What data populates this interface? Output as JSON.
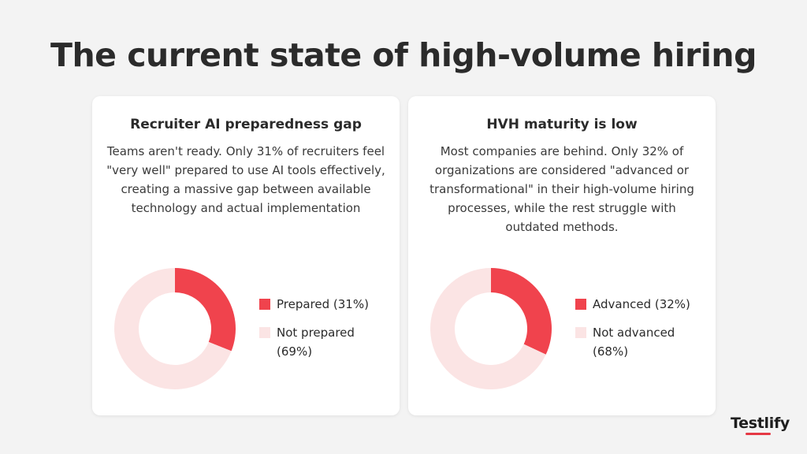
{
  "header": {
    "title": "The current state of high-volume hiring"
  },
  "colors": {
    "accent": "#f0434d",
    "accent_light": "#fbe4e4",
    "brand_red": "#e53945"
  },
  "cards": [
    {
      "title": "Recruiter AI preparedness gap",
      "description": "Teams aren't ready. Only 31% of recruiters feel \"very well\" prepared to use AI tools effectively, creating a massive gap between available technology and actual implementation",
      "legend": [
        {
          "label": "Prepared (31%)"
        },
        {
          "label": "Not prepared (69%)"
        }
      ]
    },
    {
      "title": "HVH maturity is low",
      "description": "Most companies are behind. Only 32% of organizations are considered \"advanced or transformational\" in their high-volume hiring processes, while the rest struggle with outdated methods.",
      "legend": [
        {
          "label": "Advanced (32%)"
        },
        {
          "label": "Not advanced (68%)"
        }
      ]
    }
  ],
  "chart_data": [
    {
      "type": "pie",
      "title": "Recruiter AI preparedness gap",
      "categories": [
        "Prepared",
        "Not prepared"
      ],
      "values": [
        31,
        69
      ],
      "colors": [
        "#f0434d",
        "#fbe4e4"
      ],
      "donut": true,
      "legend_position": "right"
    },
    {
      "type": "pie",
      "title": "HVH maturity is low",
      "categories": [
        "Advanced",
        "Not advanced"
      ],
      "values": [
        32,
        68
      ],
      "colors": [
        "#f0434d",
        "#fbe4e4"
      ],
      "donut": true,
      "legend_position": "right"
    }
  ],
  "brand": {
    "name": "Testlify"
  }
}
